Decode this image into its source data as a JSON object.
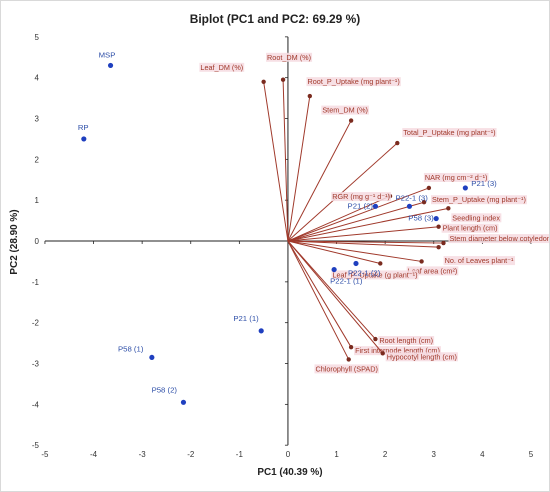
{
  "chart_data": {
    "type": "scatter",
    "title": "Biplot (PC1 and PC2: 69.29 %)",
    "xlabel": "PC1 (40.39 %)",
    "ylabel": "PC2 (28.90 %)",
    "xlim": [
      -5,
      5
    ],
    "ylim": [
      -5,
      5
    ],
    "x_ticks": [
      "-5",
      "-4",
      "-3",
      "-2",
      "-1",
      "0",
      "1",
      "2",
      "3",
      "4",
      "5"
    ],
    "y_ticks": [
      "5",
      "4",
      "3",
      "2",
      "1",
      "0",
      "-1",
      "-2",
      "-3",
      "-4",
      "-5"
    ],
    "grid": false,
    "series": [
      {
        "kind": "variables",
        "color": "#a0392b",
        "points": [
          {
            "label": "Root_DM (%)",
            "x": -0.1,
            "y": 3.95
          },
          {
            "label": "Leaf_DM (%)",
            "x": -0.5,
            "y": 3.9
          },
          {
            "label": "Root_P_Uptake (mg plant⁻¹)",
            "x": 0.45,
            "y": 3.55
          },
          {
            "label": "Stem_DM (%)",
            "x": 1.3,
            "y": 2.95
          },
          {
            "label": "Total_P_Uptake (mg plant⁻¹)",
            "x": 2.25,
            "y": 2.4
          },
          {
            "label": "NAR (mg cm⁻² d⁻¹)",
            "x": 2.9,
            "y": 1.3
          },
          {
            "label": "RGR (mg g⁻¹ d⁻¹)",
            "x": 2.1,
            "y": 1.1
          },
          {
            "label": "Stem_P_Uptake (mg plant⁻¹)",
            "x": 2.8,
            "y": 0.95
          },
          {
            "label": "Seedling index",
            "x": 3.3,
            "y": 0.8
          },
          {
            "label": "Plant length (cm)",
            "x": 3.1,
            "y": 0.35
          },
          {
            "label": "Stem diameter below cotyledons (cm)",
            "x": 3.2,
            "y": -0.05
          },
          {
            "label": "No. of Leaves plant⁻¹",
            "x": 3.1,
            "y": -0.15
          },
          {
            "label": "Leaf area (cm²)",
            "x": 2.75,
            "y": -0.5
          },
          {
            "label": "Leaf_P_Uptake (g plant⁻¹)",
            "x": 1.9,
            "y": -0.55
          },
          {
            "label": "Root length (cm)",
            "x": 1.8,
            "y": -2.4
          },
          {
            "label": "First internode length (cm)",
            "x": 1.3,
            "y": -2.6
          },
          {
            "label": "Hypocotyl length (cm)",
            "x": 1.95,
            "y": -2.75
          },
          {
            "label": "Chlorophyll (SPAD)",
            "x": 1.25,
            "y": -2.9
          }
        ]
      },
      {
        "kind": "observations",
        "color": "#1f3fbf",
        "points": [
          {
            "label": "MSP",
            "x": -3.65,
            "y": 4.3
          },
          {
            "label": "RP",
            "x": -4.2,
            "y": 2.5
          },
          {
            "label": "P21 (3)",
            "x": 3.65,
            "y": 1.3
          },
          {
            "label": "P21 (2)",
            "x": 1.8,
            "y": 0.85
          },
          {
            "label": "P22-1 (3)",
            "x": 2.5,
            "y": 0.85
          },
          {
            "label": "P58 (3)",
            "x": 3.05,
            "y": 0.55
          },
          {
            "label": "P22-1 (2)",
            "x": 1.4,
            "y": -0.55
          },
          {
            "label": "P22-1 (1)",
            "x": 0.95,
            "y": -0.7
          },
          {
            "label": "P21 (1)",
            "x": -0.55,
            "y": -2.2
          },
          {
            "label": "P58 (1)",
            "x": -2.8,
            "y": -2.85
          },
          {
            "label": "P58 (2)",
            "x": -2.15,
            "y": -3.95
          }
        ]
      }
    ]
  }
}
